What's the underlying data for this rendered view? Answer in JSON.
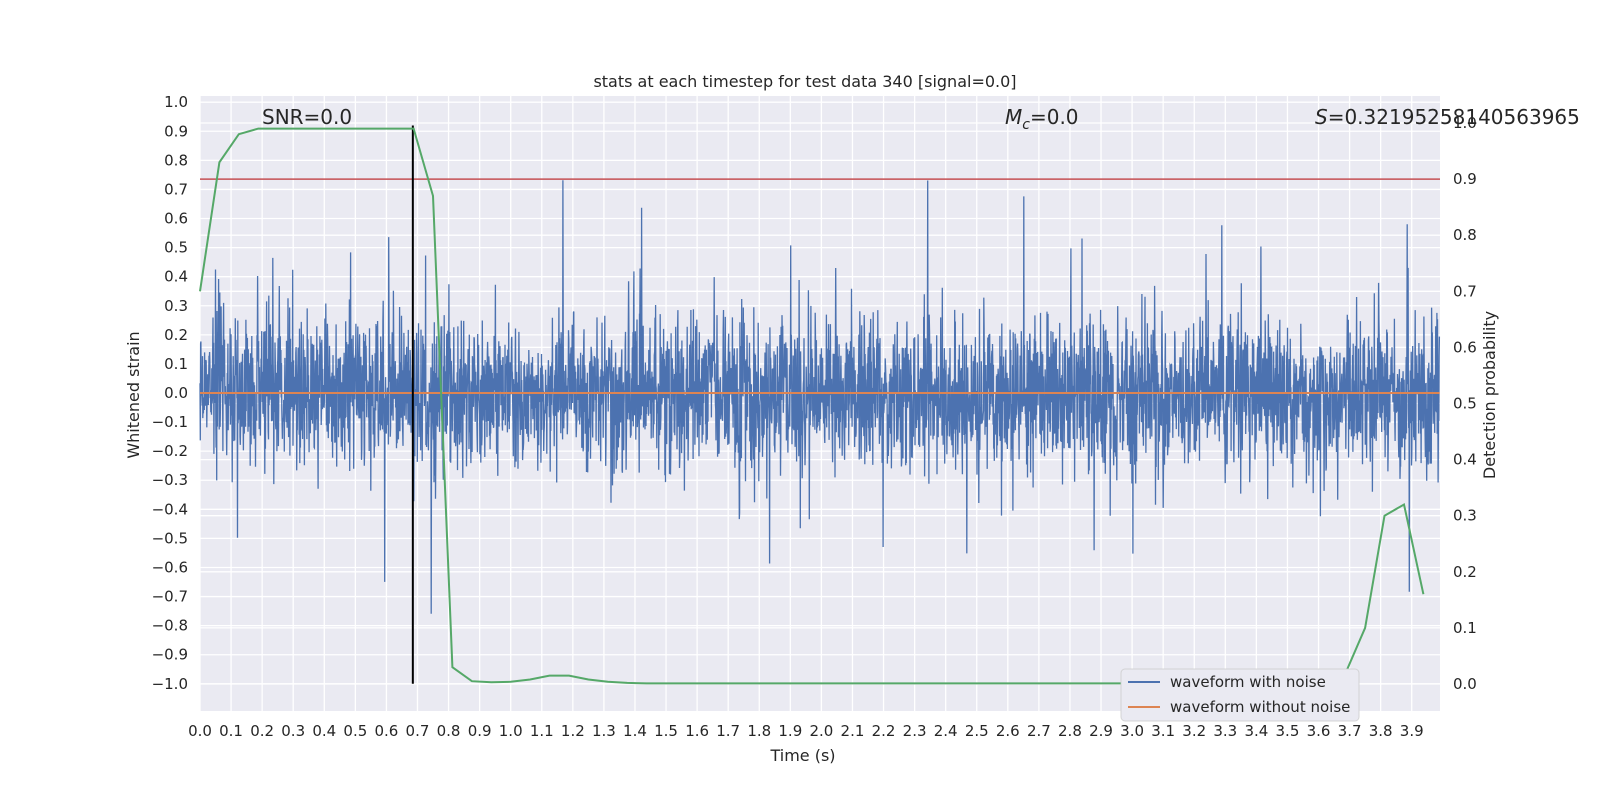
{
  "chart_data": {
    "type": "line",
    "title": "stats at each timestep for test data 340 [signal=0.0]",
    "xlabel": "Time (s)",
    "ylabel": "Whitened strain",
    "y2label": "Detection probability",
    "xlim": [
      0.0,
      4.0
    ],
    "ylim": [
      -1.1,
      1.1
    ],
    "y2lim": [
      -0.05,
      1.0
    ],
    "xticks": [
      "0.0",
      "0.1",
      "0.2",
      "0.3",
      "0.4",
      "0.5",
      "0.6",
      "0.7",
      "0.8",
      "0.9",
      "1.0",
      "1.1",
      "1.2",
      "1.3",
      "1.4",
      "1.5",
      "1.6",
      "1.7",
      "1.8",
      "1.9",
      "2.0",
      "2.1",
      "2.2",
      "2.3",
      "2.4",
      "2.5",
      "2.6",
      "2.7",
      "2.8",
      "2.9",
      "3.0",
      "3.1",
      "3.2",
      "3.3",
      "3.4",
      "3.5",
      "3.6",
      "3.7",
      "3.8",
      "3.9"
    ],
    "yticks": [
      "1.0",
      "0.9",
      "0.8",
      "0.7",
      "0.6",
      "0.5",
      "0.4",
      "0.3",
      "0.2",
      "0.1",
      "0.0",
      "-0.1",
      "-0.2",
      "-0.3",
      "-0.4",
      "-0.5",
      "-0.6",
      "-0.7",
      "-0.8",
      "-0.9",
      "-1.0"
    ],
    "y2ticks": [
      "1.0",
      "0.9",
      "0.8",
      "0.7",
      "0.6",
      "0.5",
      "0.4",
      "0.3",
      "0.2",
      "0.1",
      "0.0"
    ],
    "grid": true,
    "legend_position": "lower-right",
    "annotations": {
      "snr": "SNR=0.0",
      "mc_symbol": "M",
      "mc_sub": "c",
      "mc_value": "=0.0",
      "s_symbol": "S",
      "s_value": "=0.32195258140563965"
    },
    "series": [
      {
        "name": "waveform with noise",
        "axis": "left",
        "color": "#4c72b0",
        "description_values": "dense noise, amplitude mostly within ±0.5, peaks near 0.92 and -0.98"
      },
      {
        "name": "waveform without noise",
        "axis": "left",
        "color": "#dd8452",
        "y_constant": 0.0
      },
      {
        "name": "",
        "axis": "right",
        "color": "#55a868",
        "x": [
          0.0,
          0.0625,
          0.125,
          0.1875,
          0.25,
          0.3125,
          0.375,
          0.4375,
          0.5,
          0.5625,
          0.625,
          0.6875,
          0.75,
          0.8125,
          0.875,
          0.9375,
          1.0,
          1.0625,
          1.125,
          1.1875,
          1.25,
          1.3125,
          1.375,
          1.4375,
          1.5,
          1.5625,
          1.625,
          1.6875,
          1.75,
          1.8125,
          1.875,
          1.9375,
          2.0,
          2.0625,
          2.125,
          2.1875,
          2.25,
          2.3125,
          2.375,
          2.4375,
          2.5,
          2.5625,
          2.625,
          2.6875,
          2.75,
          2.8125,
          2.875,
          2.9375,
          3.0,
          3.0625,
          3.125,
          3.1875,
          3.25,
          3.3125,
          3.375,
          3.4375,
          3.5,
          3.5625,
          3.625,
          3.6875,
          3.75,
          3.8125,
          3.875,
          3.9375
        ],
        "values": [
          0.7,
          0.93,
          0.98,
          0.99,
          0.99,
          0.99,
          0.99,
          0.99,
          0.99,
          0.99,
          0.99,
          0.99,
          0.87,
          0.03,
          0.005,
          0.003,
          0.004,
          0.008,
          0.015,
          0.015,
          0.008,
          0.004,
          0.002,
          0.001,
          0.001,
          0.001,
          0.001,
          0.001,
          0.001,
          0.001,
          0.001,
          0.001,
          0.001,
          0.001,
          0.001,
          0.001,
          0.001,
          0.001,
          0.001,
          0.001,
          0.001,
          0.001,
          0.001,
          0.001,
          0.001,
          0.001,
          0.001,
          0.001,
          0.001,
          0.001,
          0.001,
          0.001,
          0.001,
          0.001,
          0.001,
          0.001,
          0.001,
          0.001,
          0.001,
          0.02,
          0.1,
          0.3,
          0.32,
          0.16
        ]
      }
    ],
    "threshold_line": {
      "axis": "right",
      "y": 0.9,
      "color": "#c44e52"
    },
    "marker_line": {
      "x": 0.685,
      "y_from": -1.0,
      "y_to": 0.92,
      "color": "#000000"
    }
  }
}
